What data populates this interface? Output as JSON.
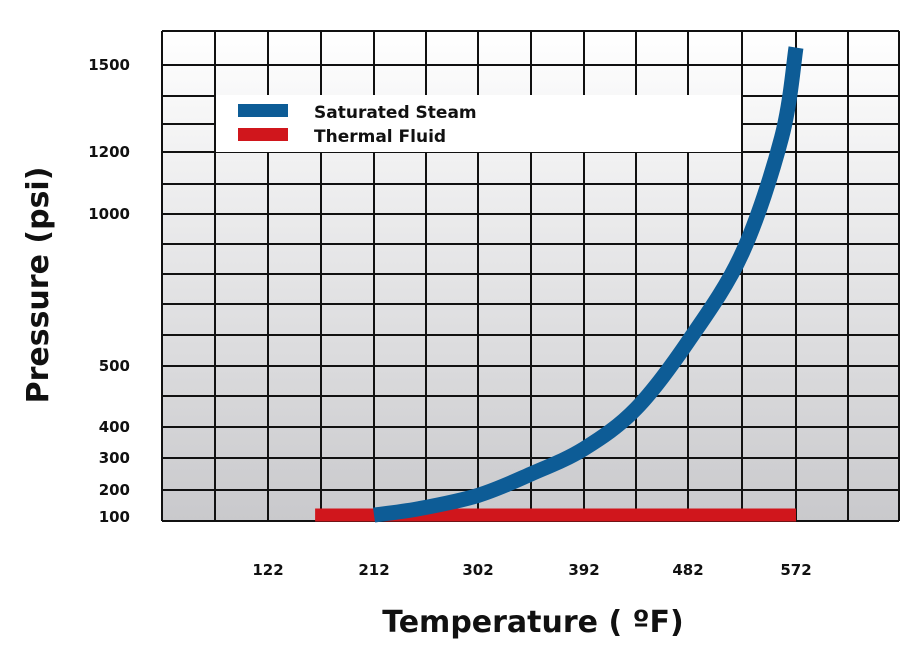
{
  "chart_data": {
    "type": "line",
    "xlabel": "Temperature ( ºF)",
    "ylabel": "Pressure (psi)",
    "x_ticks": [
      "122",
      "212",
      "302",
      "392",
      "482",
      "572"
    ],
    "y_ticks": [
      "100",
      "200",
      "300",
      "400",
      "500",
      "1000",
      "1200",
      "1500"
    ],
    "grid": true,
    "legend_position": "top",
    "series": [
      {
        "name": "Saturated Steam",
        "color": "#0d5c96",
        "x": [
          212,
          250,
          302,
          347,
          392,
          437,
          482,
          527,
          560,
          572
        ],
        "y": [
          100,
          130,
          180,
          250,
          330,
          430,
          580,
          870,
          1250,
          1560
        ]
      },
      {
        "name": "Thermal Fluid",
        "color": "#d0161c",
        "x": [
          162,
          572
        ],
        "y": [
          100,
          100
        ]
      }
    ]
  }
}
